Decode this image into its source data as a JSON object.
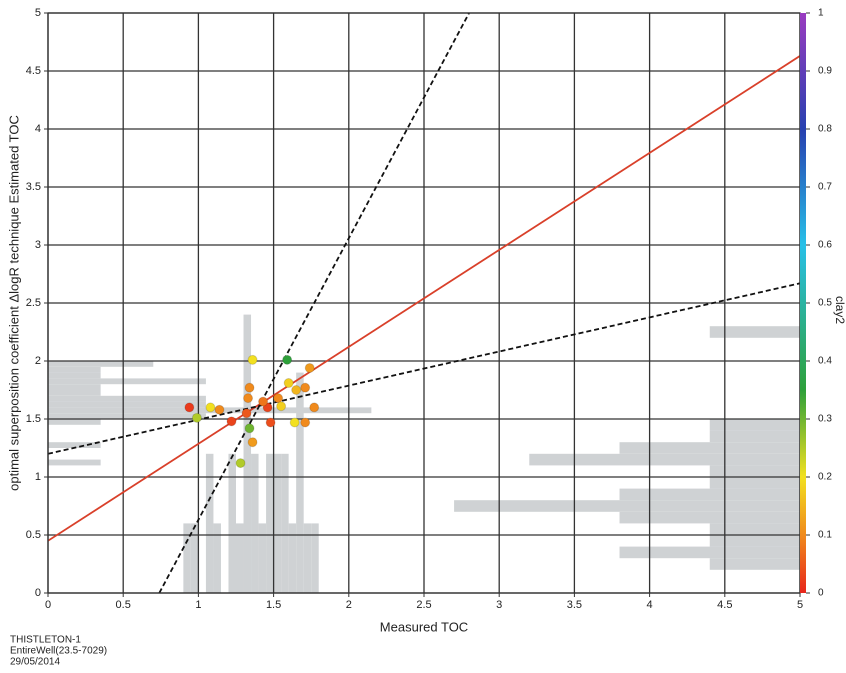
{
  "chart_data": {
    "type": "scatter",
    "x_label": "Measured TOC",
    "y_label": "optimal superposition coefficient ΔlogR technique Estimated TOC",
    "xlim": [
      0,
      5
    ],
    "ylim": [
      0,
      5
    ],
    "xticks": [
      0,
      0.5,
      1,
      1.5,
      2,
      2.5,
      3,
      3.5,
      4,
      4.5,
      5
    ],
    "yticks": [
      0,
      0.5,
      1,
      1.5,
      2,
      2.5,
      3,
      3.5,
      4,
      4.5,
      5
    ],
    "grid": true,
    "x": [
      0.94,
      0.99,
      1.08,
      1.14,
      1.22,
      1.36,
      1.34,
      1.33,
      1.32,
      1.34,
      1.36,
      1.28,
      1.59,
      1.46,
      1.48,
      1.53,
      1.55,
      1.6,
      1.65,
      1.71,
      1.74,
      1.77,
      1.64,
      1.71,
      1.43
    ],
    "y": [
      1.6,
      1.51,
      1.6,
      1.58,
      1.48,
      2.01,
      1.77,
      1.68,
      1.55,
      1.42,
      1.3,
      1.12,
      2.01,
      1.6,
      1.47,
      1.68,
      1.61,
      1.81,
      1.75,
      1.77,
      1.94,
      1.6,
      1.47,
      1.47,
      1.65
    ],
    "color_values": [
      0.02,
      0.25,
      0.2,
      0.1,
      0.03,
      0.2,
      0.1,
      0.1,
      0.05,
      0.3,
      0.12,
      0.25,
      0.35,
      0.03,
      0.04,
      0.1,
      0.18,
      0.18,
      0.15,
      0.1,
      0.12,
      0.1,
      0.2,
      0.1,
      0.08
    ],
    "color_label": "clay2",
    "clim": [
      0,
      1
    ],
    "cticks": [
      0,
      0.1,
      0.2,
      0.3,
      0.4,
      0.5,
      0.6,
      0.7,
      0.8,
      0.9,
      1
    ],
    "colormap": [
      {
        "value": 0,
        "color": "#e8261c"
      },
      {
        "value": 0.1,
        "color": "#f08a1c"
      },
      {
        "value": 0.2,
        "color": "#f2e020"
      },
      {
        "value": 0.35,
        "color": "#2ea03a"
      },
      {
        "value": 0.6,
        "color": "#28c0e8"
      },
      {
        "value": 0.8,
        "color": "#2840b0"
      },
      {
        "value": 1,
        "color": "#9a3cc0"
      }
    ],
    "lines": [
      {
        "color": "#d9402a",
        "dashed": false,
        "x": [
          0,
          5
        ],
        "y": [
          0.45,
          4.63
        ]
      },
      {
        "color": "#111111",
        "dashed": true,
        "x": [
          0,
          5
        ],
        "y": [
          1.2,
          2.67
        ]
      },
      {
        "color": "#111111",
        "dashed": true,
        "x": [
          0.74,
          2.8
        ],
        "y": [
          0,
          5
        ]
      }
    ],
    "hist_color": "#cfd2d4",
    "x_hist": {
      "bins": [
        0.9,
        0.95,
        1.0,
        1.05,
        1.1,
        1.15,
        1.2,
        1.25,
        1.3,
        1.35,
        1.4,
        1.45,
        1.5,
        1.55,
        1.6,
        1.65,
        1.7,
        1.75,
        1.8
      ],
      "values": [
        0.6,
        0.6,
        0,
        1.2,
        0.6,
        0,
        1.2,
        0.6,
        2.4,
        1.2,
        0.6,
        1.2,
        1.2,
        1.2,
        0.6,
        1.9,
        0.6,
        0.6
      ]
    },
    "y_hist": {
      "bins": [
        1.1,
        1.15,
        1.2,
        1.25,
        1.3,
        1.35,
        1.4,
        1.45,
        1.5,
        1.55,
        1.6,
        1.65,
        1.7,
        1.75,
        1.8,
        1.85,
        1.9,
        1.95,
        2.0,
        2.05
      ],
      "values": [
        0.35,
        0,
        0,
        0.35,
        0,
        0,
        0,
        0.35,
        1.05,
        2.15,
        1.05,
        1.05,
        0.35,
        0.35,
        1.05,
        0.35,
        0.35,
        0.7,
        0
      ]
    },
    "c_hist": {
      "bins": [
        0.04,
        0.06,
        0.08,
        0.1,
        0.12,
        0.14,
        0.16,
        0.18,
        0.2,
        0.22,
        0.24,
        0.26,
        0.28,
        0.3,
        0.32,
        0.34,
        0.36,
        0.38,
        0.4,
        0.42,
        0.44,
        0.46,
        0.48
      ],
      "values": [
        0.6,
        1.2,
        0.6,
        0.6,
        1.2,
        2.3,
        1.2,
        0.6,
        0.6,
        1.8,
        1.2,
        0.6,
        0.6,
        0,
        0,
        0,
        0,
        0,
        0,
        0,
        0.6,
        0
      ]
    },
    "footer": [
      "THISTLETON-1",
      "EntireWell(23.5-7029)",
      "29/05/2014"
    ]
  }
}
